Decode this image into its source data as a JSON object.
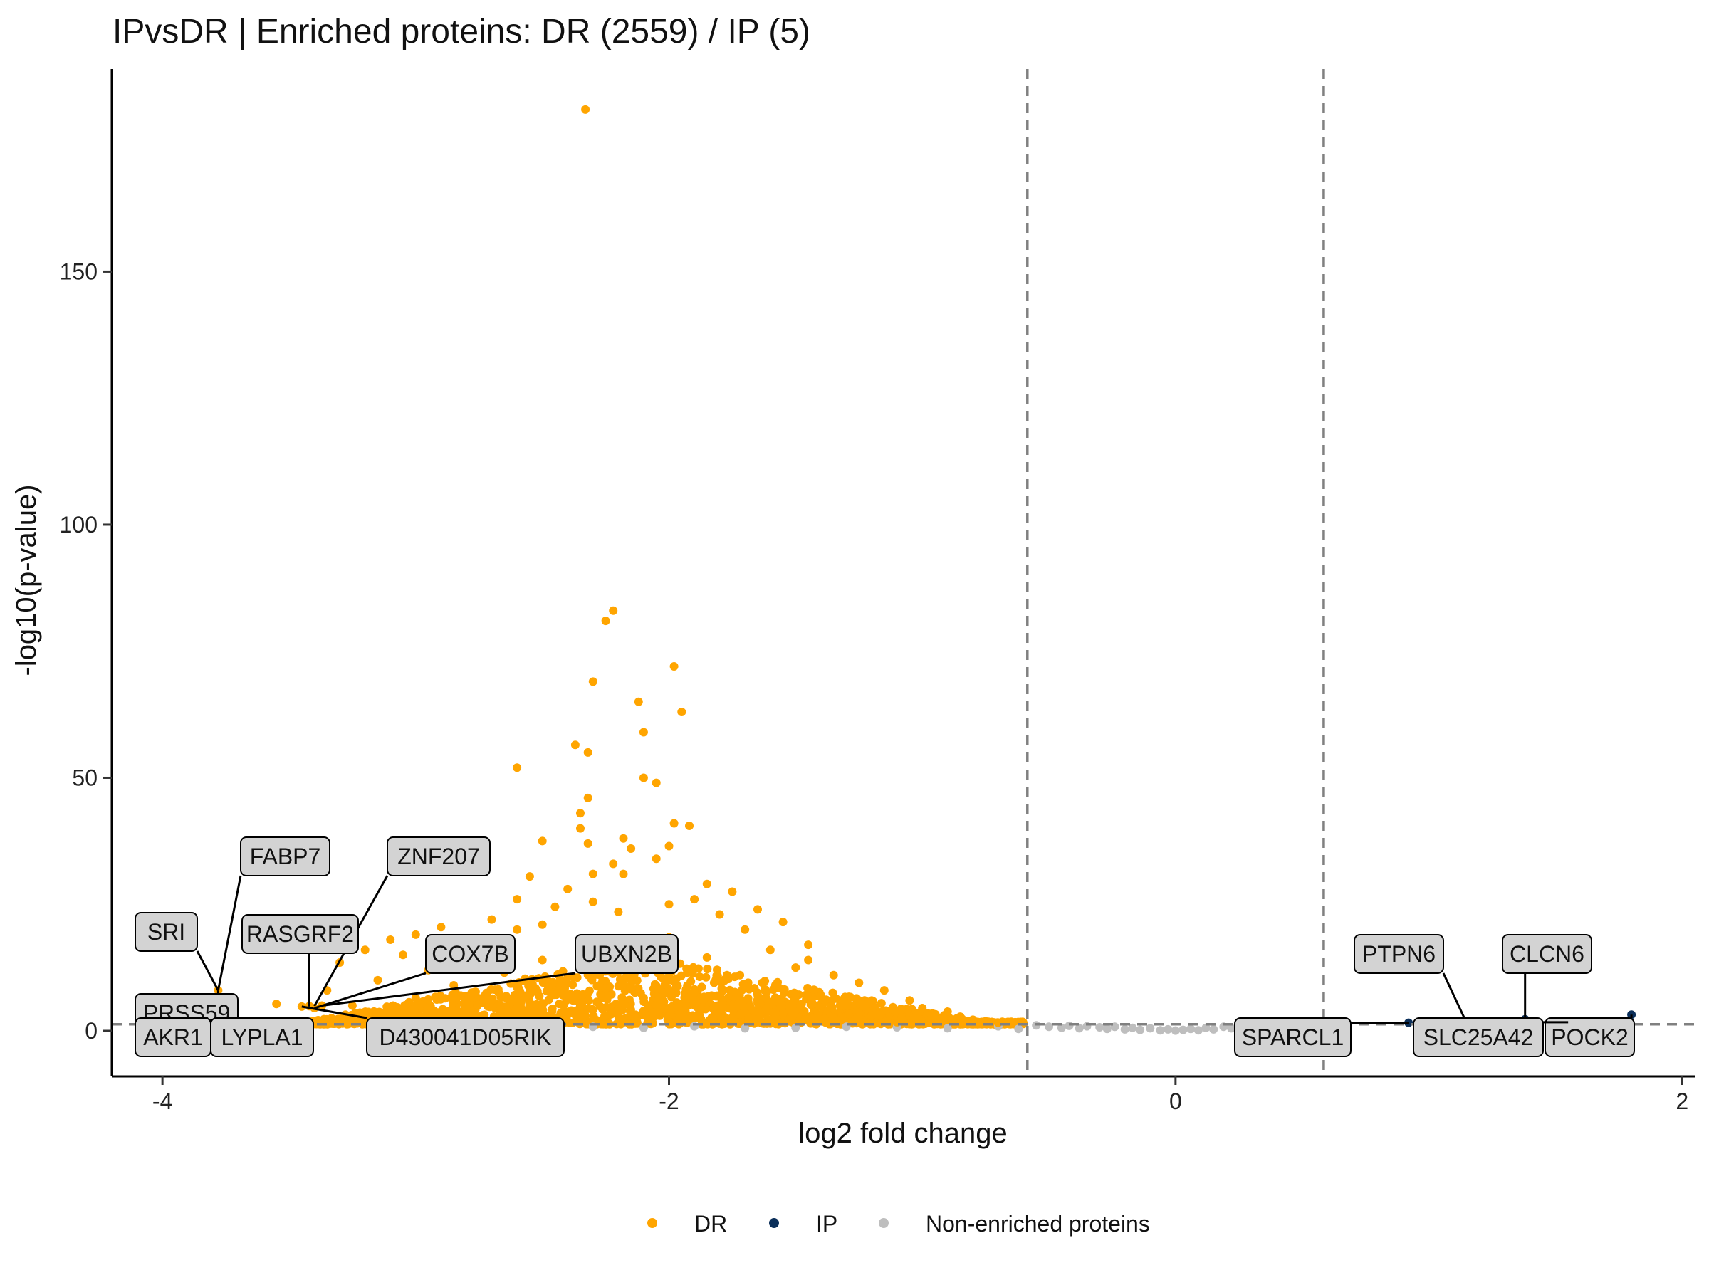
{
  "chart_data": {
    "type": "scatter",
    "title": "IPvsDR | Enriched proteins: DR (2559) / IP (5)",
    "xlabel": "log2 fold change",
    "ylabel": "-log10(p-value)",
    "xlim": [
      -4.2,
      2.05
    ],
    "ylim": [
      -9,
      190
    ],
    "xticks": [
      -4,
      -2,
      0,
      2
    ],
    "xtick_labels": [
      "-4",
      "-2",
      "0",
      "2"
    ],
    "yticks": [
      0,
      50,
      100,
      150
    ],
    "ytick_labels": [
      "0",
      "50",
      "100",
      "150"
    ],
    "grid": false,
    "legend_position": "bottom",
    "thresholds": {
      "fc_vlines": [
        -0.585,
        0.585
      ],
      "p_hline": 1.3
    },
    "colors": {
      "DR": "#FFA500",
      "IP": "#0B2F5A",
      "Non-enriched proteins": "#BEBEBE",
      "threshold": "#808080",
      "label_fill": "#D3D3D3"
    },
    "series": [
      {
        "name": "DR",
        "color": "#FFA500",
        "points": [
          [
            -2.33,
            182
          ],
          [
            -2.22,
            83
          ],
          [
            -2.25,
            81
          ],
          [
            -1.98,
            72
          ],
          [
            -2.3,
            69
          ],
          [
            -2.12,
            65
          ],
          [
            -1.95,
            63
          ],
          [
            -2.1,
            59
          ],
          [
            -2.37,
            56.5
          ],
          [
            -2.32,
            55
          ],
          [
            -2.6,
            52
          ],
          [
            -2.1,
            50
          ],
          [
            -2.05,
            49
          ],
          [
            -2.32,
            46
          ],
          [
            -2.35,
            43
          ],
          [
            -1.98,
            41
          ],
          [
            -1.92,
            40.5
          ],
          [
            -2.35,
            40
          ],
          [
            -2.18,
            38
          ],
          [
            -2.32,
            37
          ],
          [
            -2.5,
            37.5
          ],
          [
            -2.0,
            36.5
          ],
          [
            -2.15,
            36
          ],
          [
            -2.05,
            34
          ],
          [
            -2.22,
            33
          ],
          [
            -2.3,
            31
          ],
          [
            -2.55,
            30.5
          ],
          [
            -1.85,
            29
          ],
          [
            -2.18,
            31
          ],
          [
            -2.4,
            28
          ],
          [
            -1.75,
            27.5
          ],
          [
            -2.6,
            26
          ],
          [
            -1.9,
            26
          ],
          [
            -2.3,
            25.5
          ],
          [
            -2.45,
            24.5
          ],
          [
            -1.65,
            24
          ],
          [
            -2.0,
            25
          ],
          [
            -2.7,
            22
          ],
          [
            -2.2,
            23.5
          ],
          [
            -1.8,
            23
          ],
          [
            -1.55,
            21.5
          ],
          [
            -2.5,
            21
          ],
          [
            -2.9,
            20.5
          ],
          [
            -3.0,
            19
          ],
          [
            -2.6,
            20
          ],
          [
            -1.7,
            20
          ],
          [
            -3.1,
            18
          ],
          [
            -2.0,
            18.5
          ],
          [
            -1.45,
            17
          ],
          [
            -2.8,
            17.5
          ],
          [
            -3.2,
            16
          ],
          [
            -2.35,
            16.5
          ],
          [
            -1.6,
            16
          ],
          [
            -3.05,
            15
          ],
          [
            -2.75,
            15
          ],
          [
            -1.85,
            14.5
          ],
          [
            -1.45,
            14
          ],
          [
            -2.5,
            14
          ],
          [
            -3.3,
            13.5
          ],
          [
            -2.15,
            13
          ],
          [
            -1.5,
            12.5
          ],
          [
            -2.95,
            12
          ],
          [
            -2.65,
            11.5
          ],
          [
            -1.72,
            11
          ],
          [
            -1.35,
            11
          ],
          [
            -2.4,
            10.5
          ],
          [
            -3.15,
            10
          ],
          [
            -2.0,
            10
          ],
          [
            -1.25,
            9.5
          ],
          [
            -2.85,
            9
          ],
          [
            -1.58,
            9
          ],
          [
            -2.25,
            8.5
          ],
          [
            -3.35,
            8
          ],
          [
            -1.15,
            8
          ],
          [
            -2.55,
            7.5
          ],
          [
            -1.9,
            7.5
          ],
          [
            -1.4,
            7
          ],
          [
            -3.0,
            6.5
          ],
          [
            -2.1,
            6.5
          ],
          [
            -1.05,
            6
          ],
          [
            -2.7,
            6
          ],
          [
            -1.65,
            5.5
          ],
          [
            -3.25,
            5
          ],
          [
            -2.35,
            5
          ],
          [
            -1.3,
            5
          ],
          [
            -1.0,
            4.5
          ],
          [
            -2.8,
            4.2
          ],
          [
            -1.95,
            4
          ],
          [
            -0.9,
            3.8
          ],
          [
            -1.55,
            3.5
          ],
          [
            -3.1,
            3.5
          ],
          [
            -2.2,
            3.2
          ],
          [
            -1.2,
            3
          ],
          [
            -0.85,
            2.8
          ],
          [
            -2.6,
            2.6
          ],
          [
            -1.75,
            2.4
          ],
          [
            -0.8,
            2.2
          ],
          [
            -1.4,
            2.1
          ],
          [
            -0.75,
            1.9
          ],
          [
            -2.0,
            1.8
          ],
          [
            -1.1,
            1.7
          ],
          [
            -0.7,
            1.6
          ],
          [
            -0.65,
            1.5
          ],
          [
            -0.95,
            1.45
          ],
          [
            -3.37,
            5
          ],
          [
            -3.42,
            4.9
          ],
          [
            -3.4,
            4.5
          ],
          [
            -3.45,
            4.8
          ],
          [
            -3.55,
            5.3
          ],
          [
            -3.78,
            8
          ],
          [
            -3.9,
            1.6
          ],
          [
            -3.8,
            1.5
          ]
        ]
      },
      {
        "name": "IP",
        "color": "#0B2F5A",
        "points": [
          [
            1.8,
            3.2
          ],
          [
            0.92,
            1.6
          ],
          [
            1.38,
            2.3
          ],
          [
            1.15,
            1.5
          ],
          [
            1.55,
            1.7
          ]
        ]
      },
      {
        "name": "Non-enriched proteins",
        "color": "#BEBEBE",
        "points": [
          [
            -0.55,
            1.1
          ],
          [
            -0.5,
            0.8
          ],
          [
            -0.45,
            0.6
          ],
          [
            -0.42,
            1.0
          ],
          [
            -0.38,
            0.5
          ],
          [
            -0.35,
            0.9
          ],
          [
            -0.3,
            0.7
          ],
          [
            -0.27,
            0.4
          ],
          [
            -0.24,
            0.8
          ],
          [
            -0.2,
            0.3
          ],
          [
            -0.17,
            0.6
          ],
          [
            -0.14,
            0.2
          ],
          [
            -0.1,
            0.5
          ],
          [
            -0.06,
            0.1
          ],
          [
            -0.03,
            0.3
          ],
          [
            0.0,
            0.05
          ],
          [
            0.03,
            0.2
          ],
          [
            0.06,
            0.4
          ],
          [
            0.09,
            0.1
          ],
          [
            0.12,
            0.6
          ],
          [
            0.15,
            0.3
          ],
          [
            0.19,
            0.8
          ],
          [
            0.22,
            0.5
          ],
          [
            0.26,
            1.0
          ],
          [
            0.3,
            0.7
          ],
          [
            0.34,
            1.1
          ],
          [
            0.38,
            0.6
          ],
          [
            0.42,
            1.2
          ],
          [
            0.46,
            0.9
          ],
          [
            0.5,
            1.0
          ],
          [
            -2.3,
            0.8
          ],
          [
            -2.1,
            0.6
          ],
          [
            -1.9,
            0.9
          ],
          [
            -1.7,
            0.5
          ],
          [
            -2.5,
            0.7
          ],
          [
            -2.7,
            0.9
          ],
          [
            -1.5,
            0.6
          ],
          [
            -1.3,
            0.8
          ],
          [
            -1.1,
            0.7
          ],
          [
            -0.9,
            0.5
          ],
          [
            -0.7,
            0.9
          ],
          [
            -0.62,
            0.4
          ]
        ]
      }
    ],
    "dense_cloud": {
      "series": "DR",
      "description": "dense orange band of DR proteins",
      "x_range": [
        -3.45,
        -0.6
      ],
      "y_range": [
        1.3,
        15
      ],
      "peak_x": -2.1
    },
    "labels": [
      {
        "text": "FABP7",
        "point": [
          -3.78,
          8
        ]
      },
      {
        "text": "ZNF207",
        "point": [
          -3.4,
          4.9
        ]
      },
      {
        "text": "SRI",
        "point": [
          -3.78,
          8
        ]
      },
      {
        "text": "RASGRF2",
        "point": [
          -3.42,
          4.8
        ]
      },
      {
        "text": "COX7B",
        "point": [
          -3.4,
          4.5
        ]
      },
      {
        "text": "UBXN2B",
        "point": [
          -3.37,
          5
        ]
      },
      {
        "text": "PRSS59",
        "point": [
          -3.78,
          8
        ]
      },
      {
        "text": "AKR1",
        "point": [
          -3.9,
          1.6
        ]
      },
      {
        "text": "LYPLA1",
        "point": [
          -3.8,
          1.5
        ]
      },
      {
        "text": "D430041D05RIK",
        "point": [
          -3.45,
          4.8
        ]
      },
      {
        "text": "PTPN6",
        "point": [
          1.15,
          1.5
        ]
      },
      {
        "text": "CLCN6",
        "point": [
          1.38,
          2.3
        ]
      },
      {
        "text": "SPARCL1",
        "point": [
          0.92,
          1.6
        ]
      },
      {
        "text": "SLC25A42",
        "point": [
          1.55,
          1.7
        ]
      },
      {
        "text": "POCK2",
        "point": [
          1.8,
          3.2
        ]
      }
    ]
  }
}
